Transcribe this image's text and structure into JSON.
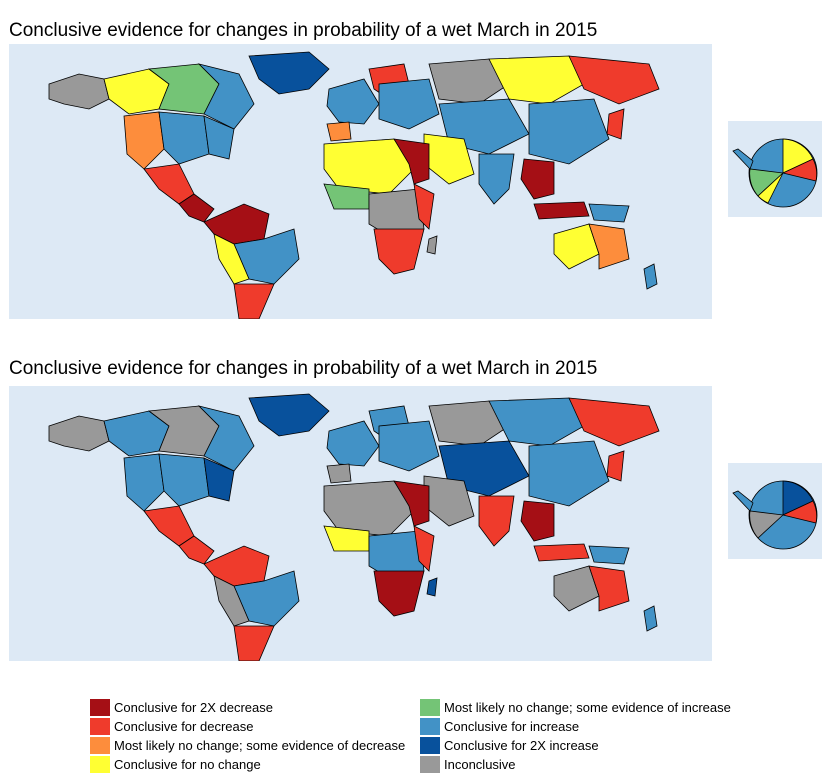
{
  "panels": [
    {
      "title": "Conclusive evidence for changes in probability of a wet March in 2015"
    },
    {
      "title": "Conclusive evidence for changes in probability of a wet March in 2015"
    }
  ],
  "legend": {
    "items": [
      {
        "key": "dec2x",
        "label": "Conclusive for 2X decrease",
        "color": "#a50f15"
      },
      {
        "key": "dec",
        "label": "Conclusive for decrease",
        "color": "#ef3b2c"
      },
      {
        "key": "mlnc_d",
        "label": "Most likely no change; some evidence of decrease",
        "color": "#fd8d3c"
      },
      {
        "key": "nochg",
        "label": "Conclusive for no change",
        "color": "#ffff33"
      },
      {
        "key": "mlnc_i",
        "label": "Most likely no change; some evidence of increase",
        "color": "#74c476"
      },
      {
        "key": "inc",
        "label": "Conclusive for increase",
        "color": "#4292c6"
      },
      {
        "key": "inc2x",
        "label": "Conclusive for 2X increase",
        "color": "#08519c"
      },
      {
        "key": "incon",
        "label": "Inconclusive",
        "color": "#999999"
      }
    ]
  },
  "colors": {
    "ocean": "#dde9f5",
    "border": "#000000"
  }
}
